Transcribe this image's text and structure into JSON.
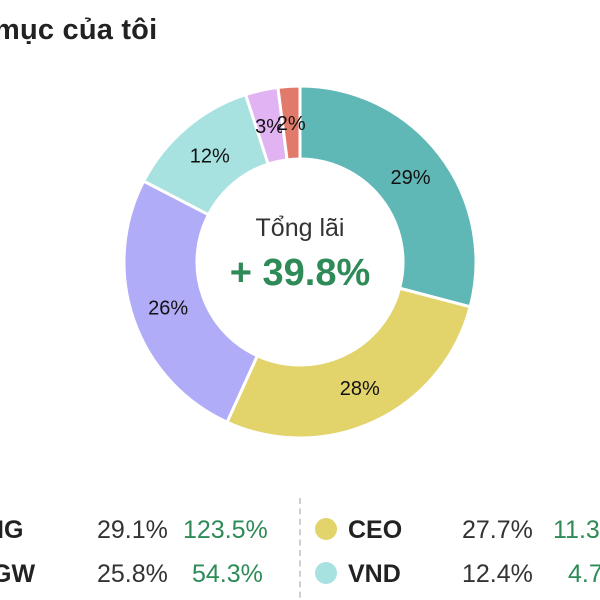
{
  "title": "mục của tôi",
  "center": {
    "caption": "Tổng lãi",
    "value": "+ 39.8%"
  },
  "chart_data": {
    "type": "pie",
    "slices": [
      {
        "label": "29%",
        "value": 29.1,
        "color": "#5fb8b6"
      },
      {
        "label": "28%",
        "value": 27.7,
        "color": "#e2d36b"
      },
      {
        "label": "26%",
        "value": 25.8,
        "color": "#b1acf7"
      },
      {
        "label": "12%",
        "value": 12.4,
        "color": "#a8e2e0"
      },
      {
        "label": "3%",
        "value": 3.0,
        "color": "#e1b3f3"
      },
      {
        "label": "2%",
        "value": 2.0,
        "color": "#e27a6b"
      }
    ]
  },
  "legend": {
    "left": [
      {
        "ticker": "IG",
        "pct": "29.1%",
        "gain": "123.5%"
      },
      {
        "ticker": "GW",
        "pct": "25.8%",
        "gain": "54.3%"
      }
    ],
    "right": [
      {
        "ticker": "CEO",
        "pct": "27.7%",
        "gain": "11.3",
        "color": "#e2d36b"
      },
      {
        "ticker": "VND",
        "pct": "12.4%",
        "gain": "4.7",
        "color": "#a8e2e0"
      }
    ]
  }
}
